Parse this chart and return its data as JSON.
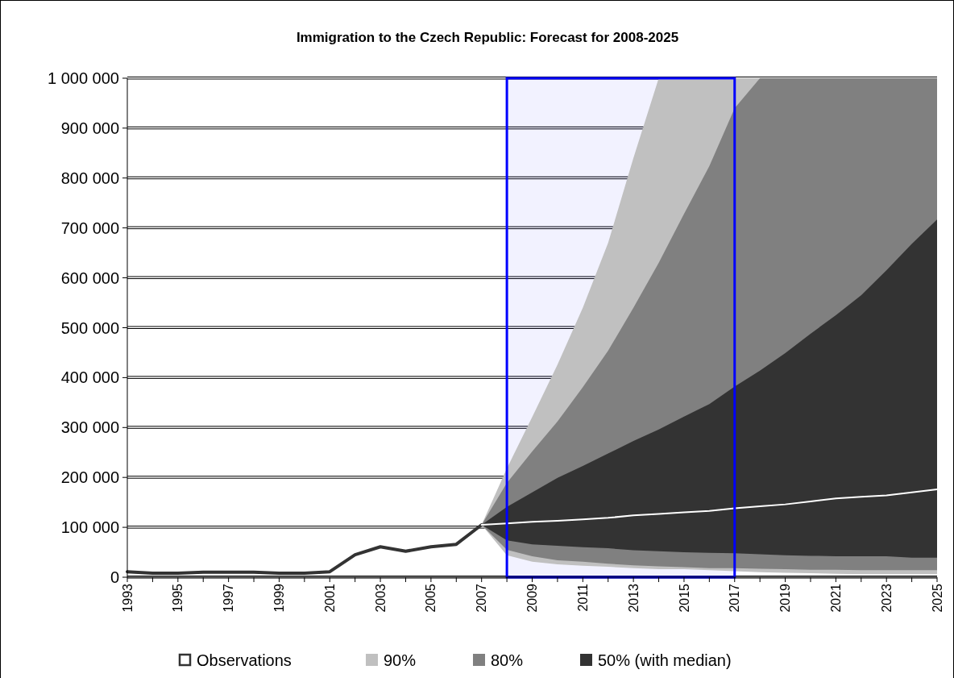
{
  "chart_data": {
    "type": "area",
    "title": "Immigration to the Czech Republic: Forecast for 2008-2025",
    "xlim": [
      1993,
      2025
    ],
    "xticks": [
      1993,
      {
        "value": 1994,
        "label": null
      },
      1995,
      {
        "value": 1996,
        "label": null
      },
      1997,
      {
        "value": 1998,
        "label": null
      },
      1999,
      {
        "value": 2000,
        "label": null
      },
      2001,
      {
        "value": 2002,
        "label": null
      },
      2003,
      {
        "value": 2004,
        "label": null
      },
      2005,
      {
        "value": 2006,
        "label": null
      },
      2007,
      {
        "value": 2008,
        "label": null
      },
      2009,
      {
        "value": 2010,
        "label": null
      },
      2011,
      {
        "value": 2012,
        "label": null
      },
      2013,
      {
        "value": 2014,
        "label": null
      },
      2015,
      {
        "value": 2016,
        "label": null
      },
      2017,
      {
        "value": 2018,
        "label": null
      },
      2019,
      {
        "value": 2020,
        "label": null
      },
      2021,
      {
        "value": 2022,
        "label": null
      },
      2023,
      {
        "value": 2024,
        "label": null
      },
      2025
    ],
    "ylim": [
      0,
      1000000
    ],
    "yticks": [
      0,
      {
        "value": 100000,
        "label": "100 000"
      },
      {
        "value": 200000,
        "label": "200 000"
      },
      {
        "value": 300000,
        "label": "300 000"
      },
      {
        "value": 400000,
        "label": "400 000"
      },
      {
        "value": 500000,
        "label": "500 000"
      },
      {
        "value": 600000,
        "label": "600 000"
      },
      {
        "value": 700000,
        "label": "700 000"
      },
      {
        "value": 800000,
        "label": "800 000"
      },
      {
        "value": 900000,
        "label": "900 000"
      },
      {
        "value": 1000000,
        "label": "1 000 000"
      }
    ],
    "grid": "y",
    "legend": "bottom",
    "bands": [
      {
        "axis": "x",
        "from": 2008,
        "to": 2017,
        "color": "#0000ff"
      }
    ],
    "series": [
      {
        "name": "Observations",
        "type": "line",
        "color": "#333333",
        "x": [
          1993,
          1994,
          1995,
          1996,
          1997,
          1998,
          1999,
          2000,
          2001,
          2002,
          2003,
          2004,
          2005,
          2006,
          2007
        ],
        "values": [
          11000,
          8000,
          8000,
          10000,
          10000,
          10000,
          8000,
          8000,
          11000,
          45000,
          61000,
          52000,
          61000,
          66000,
          105000
        ]
      },
      {
        "name": "90%",
        "color": "#c0c0c0",
        "x": [
          2007,
          2008,
          2009,
          2010,
          2011,
          2012,
          2013,
          2014,
          2015,
          2016,
          2017,
          2018,
          2019,
          2020,
          2021,
          2022,
          2023,
          2024,
          2025
        ],
        "values": [
          null,
          null,
          null,
          null,
          null,
          null,
          null,
          null,
          null,
          null,
          null,
          null,
          null,
          null,
          null,
          null,
          null,
          null,
          null
        ],
        "lower": [
          105000,
          44000,
          31000,
          26000,
          23000,
          21000,
          18000,
          16000,
          16000,
          14000,
          12000,
          10000,
          9000,
          8000,
          7000,
          6000,
          6000,
          6000,
          6000
        ],
        "upper": [
          105000,
          218000,
          321000,
          426000,
          540000,
          670000,
          840000,
          1000000,
          1000000,
          1000000,
          1000000,
          1000000,
          1000000,
          1000000,
          1000000,
          1000000,
          1000000,
          1000000,
          1000000
        ]
      },
      {
        "name": "80%",
        "color": "#808080",
        "x": [
          2007,
          2008,
          2009,
          2010,
          2011,
          2012,
          2013,
          2014,
          2015,
          2016,
          2017,
          2018,
          2019,
          2020,
          2021,
          2022,
          2023,
          2024,
          2025
        ],
        "values": [
          null,
          null,
          null,
          null,
          null,
          null,
          null,
          null,
          null,
          null,
          null,
          null,
          null,
          null,
          null,
          null,
          null,
          null,
          null
        ],
        "lower": [
          105000,
          55000,
          42000,
          34000,
          31000,
          27000,
          24000,
          22000,
          20000,
          18000,
          18000,
          17000,
          16000,
          15000,
          15000,
          14000,
          14000,
          14000,
          14000
        ],
        "upper": [
          105000,
          189000,
          252000,
          312000,
          381000,
          454000,
          540000,
          630000,
          728000,
          824000,
          940000,
          1000000,
          1000000,
          1000000,
          1000000,
          1000000,
          1000000,
          1000000,
          1000000
        ]
      },
      {
        "name": "50% (with median)",
        "color": "#333333",
        "x": [
          2007,
          2008,
          2009,
          2010,
          2011,
          2012,
          2013,
          2014,
          2015,
          2016,
          2017,
          2018,
          2019,
          2020,
          2021,
          2022,
          2023,
          2024,
          2025
        ],
        "values": [
          null,
          null,
          null,
          null,
          null,
          null,
          null,
          null,
          null,
          null,
          null,
          null,
          null,
          null,
          null,
          null,
          null,
          null,
          null
        ],
        "lower": [
          105000,
          74000,
          66000,
          63000,
          60000,
          58000,
          54000,
          52000,
          50000,
          49000,
          48000,
          46000,
          44000,
          43000,
          42000,
          42000,
          42000,
          39000,
          39000
        ],
        "upper": [
          105000,
          141000,
          170000,
          199000,
          223000,
          248000,
          273000,
          296000,
          322000,
          347000,
          382000,
          414000,
          449000,
          488000,
          525000,
          565000,
          615000,
          668000,
          717000
        ]
      },
      {
        "type": "line",
        "color": "#ffffff",
        "x": [
          2007,
          2008,
          2009,
          2010,
          2011,
          2012,
          2013,
          2014,
          2015,
          2016,
          2017,
          2018,
          2019,
          2020,
          2021,
          2022,
          2023,
          2024,
          2025
        ],
        "values": [
          105000,
          108000,
          111000,
          113000,
          116000,
          119000,
          124000,
          127000,
          130000,
          133000,
          138000,
          142000,
          146000,
          152000,
          158000,
          161000,
          164000,
          170000,
          176000
        ]
      }
    ]
  }
}
